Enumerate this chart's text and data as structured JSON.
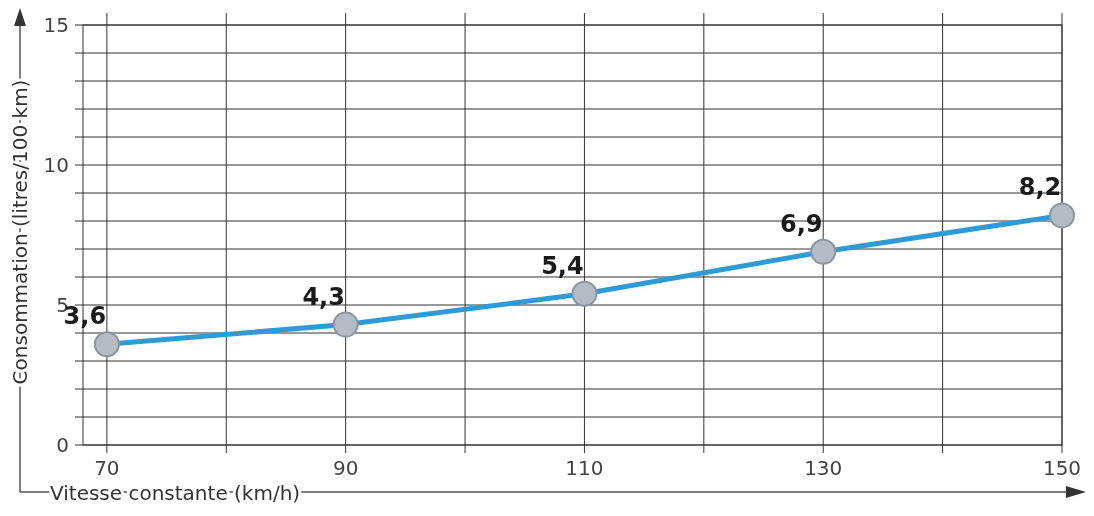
{
  "chart_data": {
    "type": "line",
    "xlabel": "Vitesse constante (km/h)",
    "ylabel": "Consommation (litres/100 km)",
    "x": [
      70,
      90,
      110,
      130,
      150
    ],
    "series": [
      {
        "color": "#2e9bd6",
        "values": [
          3.6,
          4.3,
          5.4,
          6.9,
          8.2
        ],
        "value_labels": [
          "3,6",
          "4,3",
          "5,4",
          "6,9",
          "8,2"
        ]
      }
    ],
    "xlim": [
      68,
      150
    ],
    "xticks": [
      70,
      {
        "value": 80,
        "label": null
      },
      90,
      {
        "value": 100,
        "label": null
      },
      110,
      {
        "value": 120,
        "label": null
      },
      130,
      {
        "value": 140,
        "label": null
      },
      150
    ],
    "ylim": [
      0,
      15
    ],
    "yticks": [
      0,
      {
        "value": 1,
        "label": null
      },
      {
        "value": 2,
        "label": null
      },
      {
        "value": 3,
        "label": null
      },
      {
        "value": 4,
        "label": null
      },
      5,
      {
        "value": 6,
        "label": null
      },
      {
        "value": 7,
        "label": null
      },
      {
        "value": 8,
        "label": null
      },
      {
        "value": 9,
        "label": null
      },
      10,
      {
        "value": 11,
        "label": null
      },
      {
        "value": 12,
        "label": null
      },
      {
        "value": 13,
        "label": null
      },
      {
        "value": 14,
        "label": null
      },
      15
    ],
    "grid": true,
    "marker": "circle",
    "line_style": "solid"
  }
}
